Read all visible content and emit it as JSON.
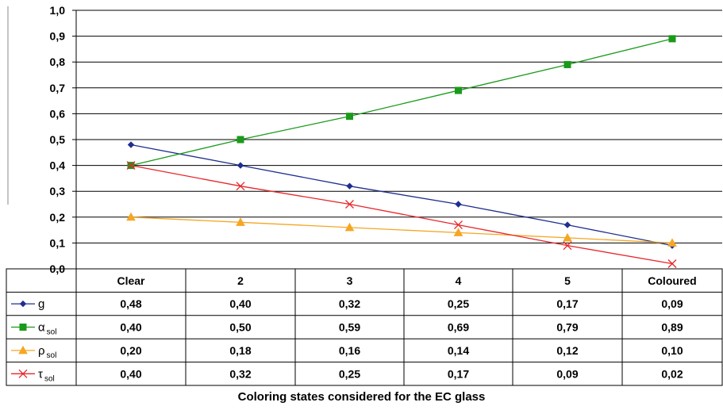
{
  "chart_data": {
    "type": "line",
    "categories": [
      "Clear",
      "2",
      "3",
      "4",
      "5",
      "Coloured"
    ],
    "series": [
      {
        "name": "g",
        "name_sub": "",
        "color": "#1f2f8f",
        "marker": "diamond",
        "values": [
          0.48,
          0.4,
          0.32,
          0.25,
          0.17,
          0.09
        ],
        "labels": [
          "0,48",
          "0,40",
          "0,32",
          "0,25",
          "0,17",
          "0,09"
        ]
      },
      {
        "name": "α",
        "name_sub": "sol",
        "color": "#1a9a1a",
        "marker": "square",
        "values": [
          0.4,
          0.5,
          0.59,
          0.69,
          0.79,
          0.89
        ],
        "labels": [
          "0,40",
          "0,50",
          "0,59",
          "0,69",
          "0,79",
          "0,89"
        ]
      },
      {
        "name": "ρ",
        "name_sub": "sol",
        "color": "#f5a623",
        "marker": "triangle",
        "values": [
          0.2,
          0.18,
          0.16,
          0.14,
          0.12,
          0.1
        ],
        "labels": [
          "0,20",
          "0,18",
          "0,16",
          "0,14",
          "0,12",
          "0,10"
        ]
      },
      {
        "name": "τ",
        "name_sub": "sol",
        "color": "#e8262a",
        "marker": "x",
        "values": [
          0.4,
          0.32,
          0.25,
          0.17,
          0.09,
          0.02
        ],
        "labels": [
          "0,40",
          "0,32",
          "0,25",
          "0,17",
          "0,09",
          "0,02"
        ]
      }
    ],
    "ylim": [
      0,
      1
    ],
    "y_ticks": [
      "0,0",
      "0,1",
      "0,2",
      "0,3",
      "0,4",
      "0,5",
      "0,6",
      "0,7",
      "0,8",
      "0,9",
      "1,0"
    ],
    "xlabel": "Coloring states considered for the EC glass",
    "grid": true,
    "legend": "data-table"
  }
}
